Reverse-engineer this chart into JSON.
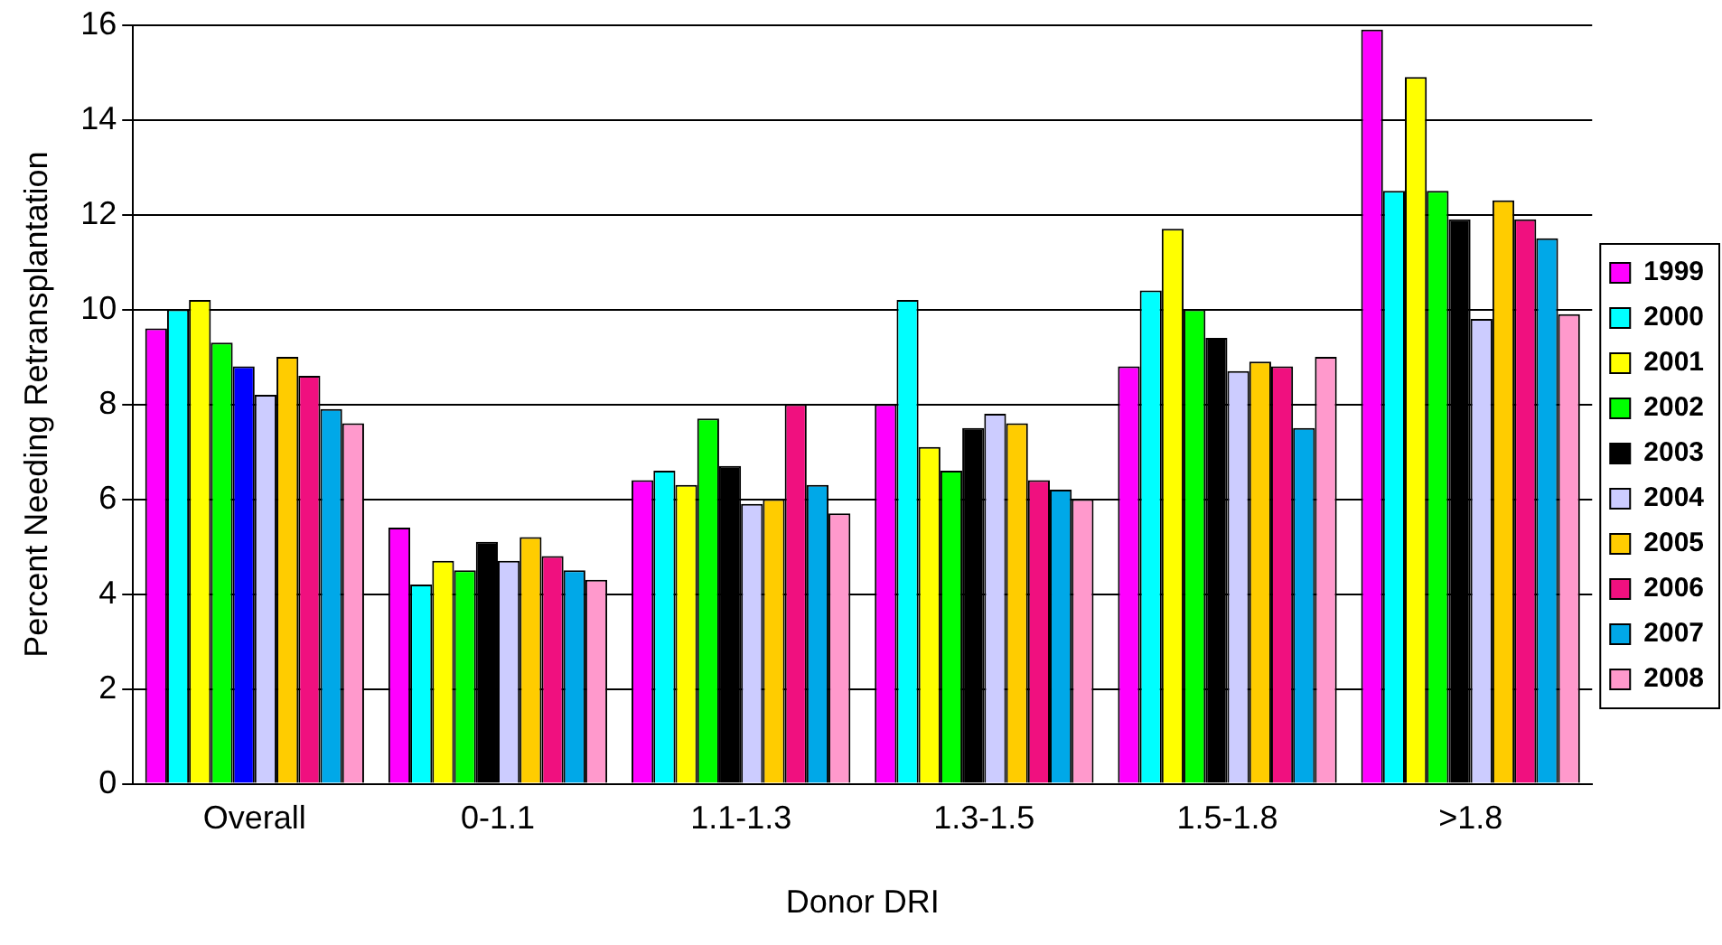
{
  "chart_data": {
    "type": "bar",
    "xlabel": "Donor DRI",
    "ylabel": "Percent Needing Retransplantation",
    "categories": [
      "Overall",
      "0-1.1",
      "1.1-1.3",
      "1.3-1.5",
      "1.5-1.8",
      ">1.8"
    ],
    "ylim": [
      0,
      16
    ],
    "yticks": [
      0,
      2,
      4,
      6,
      8,
      10,
      12,
      14,
      16
    ],
    "grid": "y",
    "legend": "right",
    "series": [
      {
        "name": "1999",
        "color": "#ff00ff",
        "values": [
          9.6,
          5.4,
          6.4,
          8.0,
          8.8,
          15.9
        ]
      },
      {
        "name": "2000",
        "color": "#00ffff",
        "values": [
          10.0,
          4.2,
          6.6,
          10.2,
          10.4,
          12.5
        ]
      },
      {
        "name": "2001",
        "color": "#ffff00",
        "values": [
          10.2,
          4.7,
          6.3,
          7.1,
          11.7,
          14.9
        ]
      },
      {
        "name": "2002",
        "color": "#00ff00",
        "values": [
          9.3,
          4.5,
          7.7,
          6.6,
          10.0,
          12.5
        ]
      },
      {
        "name": "2003",
        "color": "#000000",
        "colors": [
          "#0000ff",
          "#000000",
          "#000000",
          "#000000",
          "#000000",
          "#000000"
        ],
        "values": [
          8.8,
          5.1,
          6.7,
          7.5,
          9.4,
          11.9
        ]
      },
      {
        "name": "2004",
        "color": "#ccccff",
        "values": [
          8.2,
          4.7,
          5.9,
          7.8,
          8.7,
          9.8
        ]
      },
      {
        "name": "2005",
        "color": "#ffcc00",
        "values": [
          9.0,
          5.2,
          6.0,
          7.6,
          8.9,
          12.3
        ]
      },
      {
        "name": "2006",
        "color": "#f0107f",
        "values": [
          8.6,
          4.8,
          8.0,
          6.4,
          8.8,
          11.9
        ]
      },
      {
        "name": "2007",
        "color": "#00a8e8",
        "values": [
          7.9,
          4.5,
          6.3,
          6.2,
          7.5,
          11.5
        ]
      },
      {
        "name": "2008",
        "color": "#ff99cc",
        "values": [
          7.6,
          4.3,
          5.7,
          6.0,
          9.0,
          9.9
        ]
      }
    ]
  }
}
